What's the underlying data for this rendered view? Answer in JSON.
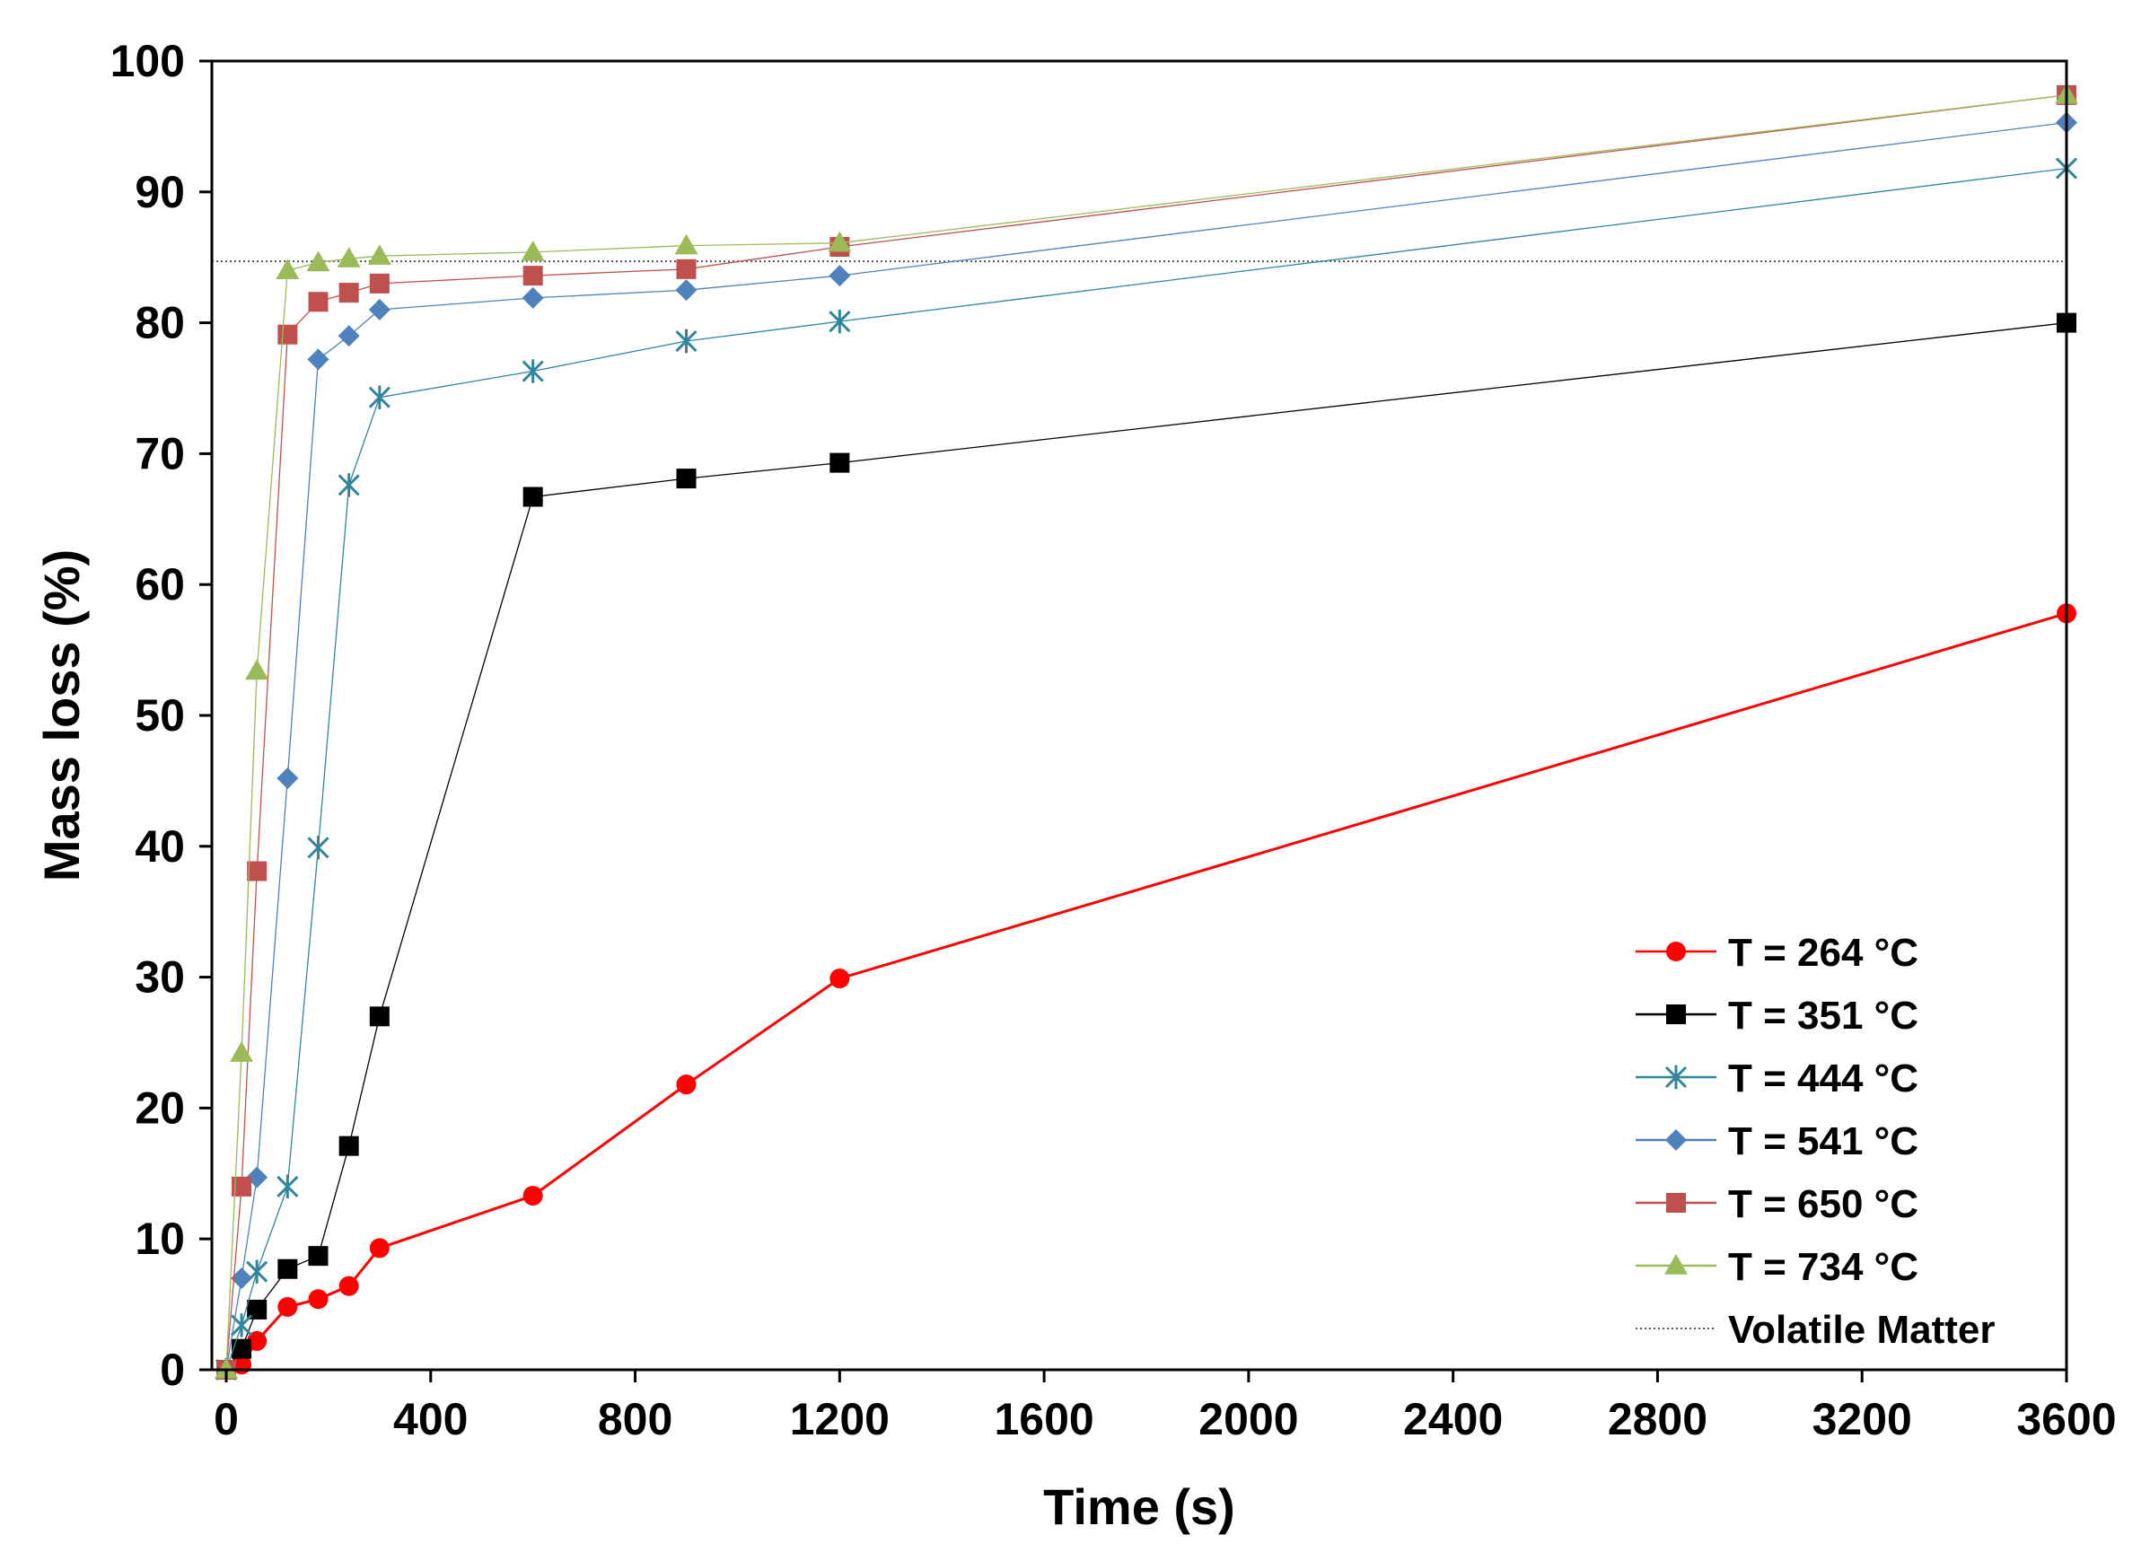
{
  "chart_data": {
    "type": "line",
    "title": "",
    "xlabel": "Time (s)",
    "ylabel": "Mass loss (%)",
    "xlim": [
      0,
      3600
    ],
    "ylim": [
      0,
      100
    ],
    "xticks": [
      0,
      400,
      800,
      1200,
      1600,
      2000,
      2400,
      2800,
      3200,
      3600
    ],
    "yticks": [
      0,
      10,
      20,
      30,
      40,
      50,
      60,
      70,
      80,
      90,
      100
    ],
    "grid": false,
    "legend_position": "bottom-right",
    "series": [
      {
        "name": "T = 264 °C",
        "color": "#ff0000",
        "marker": "circle",
        "line_weight": "thick",
        "x": [
          0,
          30,
          60,
          120,
          180,
          240,
          300,
          600,
          900,
          1200,
          3600
        ],
        "y": [
          0,
          0.4,
          2.2,
          4.8,
          5.4,
          6.4,
          9.3,
          13.3,
          21.8,
          29.9,
          57.8
        ]
      },
      {
        "name": "T = 351 °C",
        "color": "#000000",
        "marker": "square",
        "line_weight": "thin",
        "x": [
          0,
          30,
          60,
          120,
          180,
          240,
          300,
          600,
          900,
          1200,
          3600
        ],
        "y": [
          0,
          1.6,
          4.6,
          7.7,
          8.7,
          17.1,
          27.0,
          66.7,
          68.1,
          69.3,
          80.0
        ]
      },
      {
        "name": "T = 444 °C",
        "color": "#31859c",
        "marker": "asterisk",
        "line_weight": "thin",
        "x": [
          0,
          30,
          60,
          120,
          180,
          240,
          300,
          600,
          900,
          1200,
          3600
        ],
        "y": [
          0,
          3.4,
          7.5,
          14.0,
          39.9,
          67.6,
          74.3,
          76.3,
          78.6,
          80.1,
          91.8
        ]
      },
      {
        "name": "T = 541 °C",
        "color": "#4f81bd",
        "marker": "diamond",
        "line_weight": "thin",
        "x": [
          0,
          30,
          60,
          120,
          180,
          240,
          300,
          600,
          900,
          1200,
          3600
        ],
        "y": [
          0,
          7.0,
          14.7,
          45.2,
          77.2,
          79.0,
          81.0,
          81.9,
          82.5,
          83.6,
          95.3
        ]
      },
      {
        "name": "T = 650 °C",
        "color": "#c0504d",
        "marker": "square",
        "line_weight": "thin",
        "x": [
          0,
          30,
          60,
          120,
          180,
          240,
          300,
          600,
          900,
          1200,
          3600
        ],
        "y": [
          0,
          14.0,
          38.1,
          79.1,
          81.6,
          82.3,
          83.0,
          83.6,
          84.1,
          85.8,
          97.4
        ]
      },
      {
        "name": "T = 734 °C",
        "color": "#9bbb59",
        "marker": "triangle",
        "line_weight": "thin",
        "x": [
          0,
          30,
          60,
          120,
          180,
          240,
          300,
          600,
          900,
          1200,
          3600
        ],
        "y": [
          0,
          24.2,
          53.4,
          84.0,
          84.6,
          84.9,
          85.1,
          85.4,
          85.9,
          86.1,
          97.4
        ]
      }
    ],
    "reference_lines": [
      {
        "name": "Volatile Matter",
        "color": "#555555",
        "style": "dotted",
        "y": 84.7
      }
    ]
  }
}
